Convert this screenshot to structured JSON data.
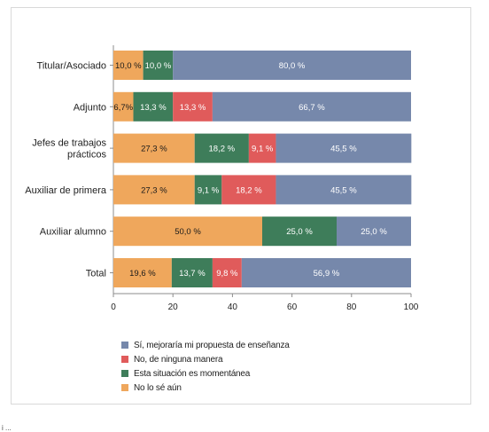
{
  "chart_data": {
    "type": "bar",
    "orientation": "horizontal",
    "stacked": true,
    "categories": [
      "Titular/Asociado",
      "Adjunto",
      "Jefes de trabajos prácticos",
      "Auxiliar de primera",
      "Auxiliar alumno",
      "Total"
    ],
    "category_lines": [
      [
        "Titular/Asociado"
      ],
      [
        "Adjunto"
      ],
      [
        "Jefes de trabajos",
        "prácticos"
      ],
      [
        "Auxiliar de primera"
      ],
      [
        "Auxiliar alumno"
      ],
      [
        "Total"
      ]
    ],
    "series": [
      {
        "name": "No lo sé aún",
        "color": "#EFA75C",
        "values": [
          10.0,
          6.7,
          27.3,
          27.3,
          50.0,
          19.6
        ],
        "labels": [
          "10,0 %",
          "6,7%",
          "27,3 %",
          "27,3 %",
          "50,0 %",
          "19,6 %"
        ]
      },
      {
        "name": "Esta situación es momentánea",
        "color": "#3E7D5A",
        "values": [
          10.0,
          13.3,
          18.2,
          9.1,
          25.0,
          13.7
        ],
        "labels": [
          "10,0 %",
          "13,3 %",
          "18,2 %",
          "9,1 %",
          "25,0 %",
          "13,7 %"
        ]
      },
      {
        "name": "No, de ninguna manera",
        "color": "#E05B5B",
        "values": [
          0,
          13.3,
          9.1,
          18.2,
          0,
          9.8
        ],
        "labels": [
          "",
          "13,3 %",
          "9,1 %",
          "18,2 %",
          "",
          "9,8 %"
        ]
      },
      {
        "name": "Sí, mejoraría mi propuesta de enseñanza",
        "color": "#7688AB",
        "values": [
          80.0,
          66.7,
          45.5,
          45.5,
          25.0,
          56.9
        ],
        "labels": [
          "80,0 %",
          "66,7 %",
          "45,5 %",
          "45,5 %",
          "25,0 %",
          "56,9 %"
        ]
      }
    ],
    "legend_order": [
      "Sí, mejoraría mi propuesta de enseñanza",
      "No, de ninguna manera",
      "Esta situación es momentánea",
      "No lo sé aún"
    ],
    "xlim": [
      0,
      100
    ],
    "xticks": [
      0,
      20,
      40,
      60,
      80,
      100
    ],
    "xlabel": "",
    "ylabel": "",
    "title": "",
    "grid": false,
    "legend_position": "bottom-left"
  },
  "footer": {
    "mark": "i ..."
  }
}
